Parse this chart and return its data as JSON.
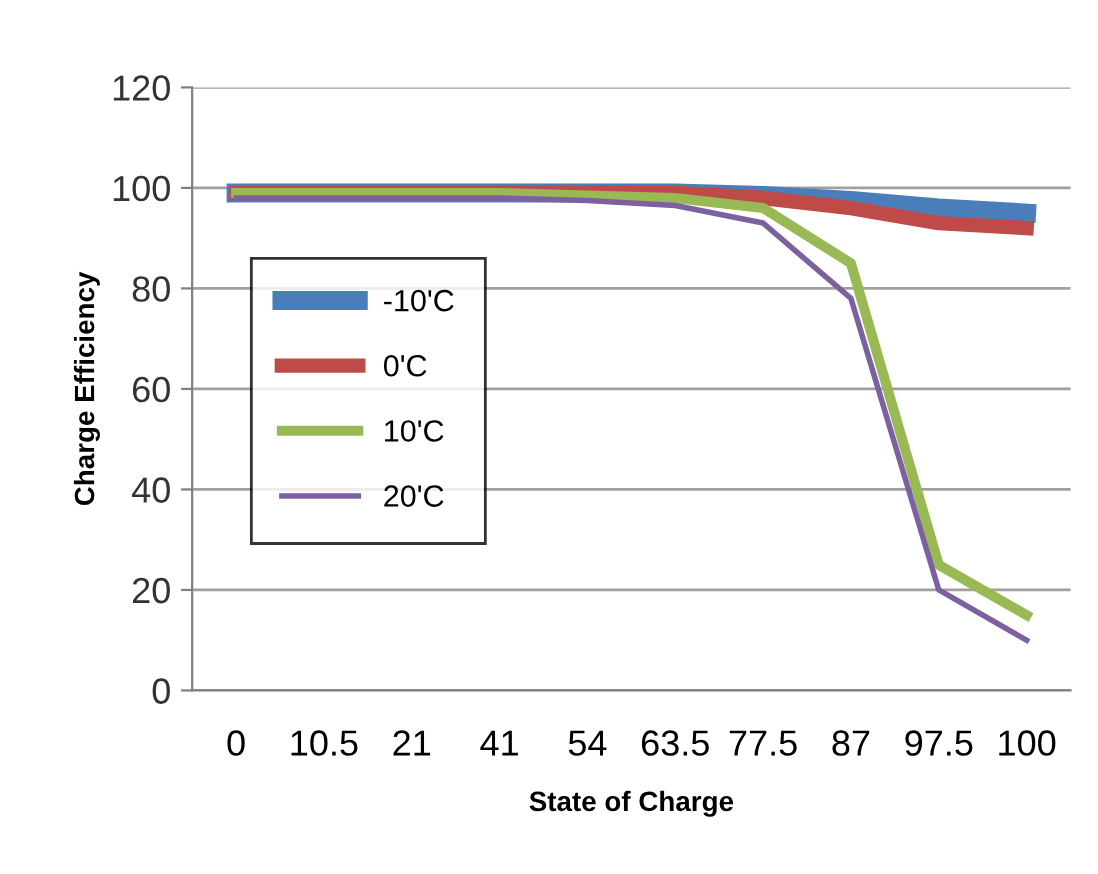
{
  "chart_data": {
    "type": "line",
    "xlabel": "State of Charge",
    "ylabel": "Charge Efficiency",
    "categories": [
      "0",
      "10.5",
      "21",
      "41",
      "54",
      "63.5",
      "77.5",
      "87",
      "97.5",
      "100"
    ],
    "series": [
      {
        "name": "-10'C",
        "color": "#4a7ebb",
        "values": [
          99,
          99,
          99,
          99,
          99,
          99,
          98.5,
          97.5,
          96,
          95
        ]
      },
      {
        "name": "0'C",
        "color": "#be4b48",
        "values": [
          99,
          99,
          99,
          99,
          99,
          99,
          98,
          96,
          93,
          92
        ]
      },
      {
        "name": "10'C",
        "color": "#98b954",
        "values": [
          99,
          99,
          99,
          99,
          98.5,
          98,
          96,
          85,
          25,
          15
        ]
      },
      {
        "name": "20'C",
        "color": "#7d60a0",
        "values": [
          98,
          98,
          98,
          98,
          97.5,
          96.5,
          93,
          78,
          20,
          10
        ]
      }
    ],
    "ylim": [
      0,
      120
    ],
    "yticks": [
      0,
      20,
      40,
      60,
      80,
      100,
      120
    ],
    "grid": "y",
    "legend": "center left",
    "marker": "none",
    "line_style": "solid"
  }
}
